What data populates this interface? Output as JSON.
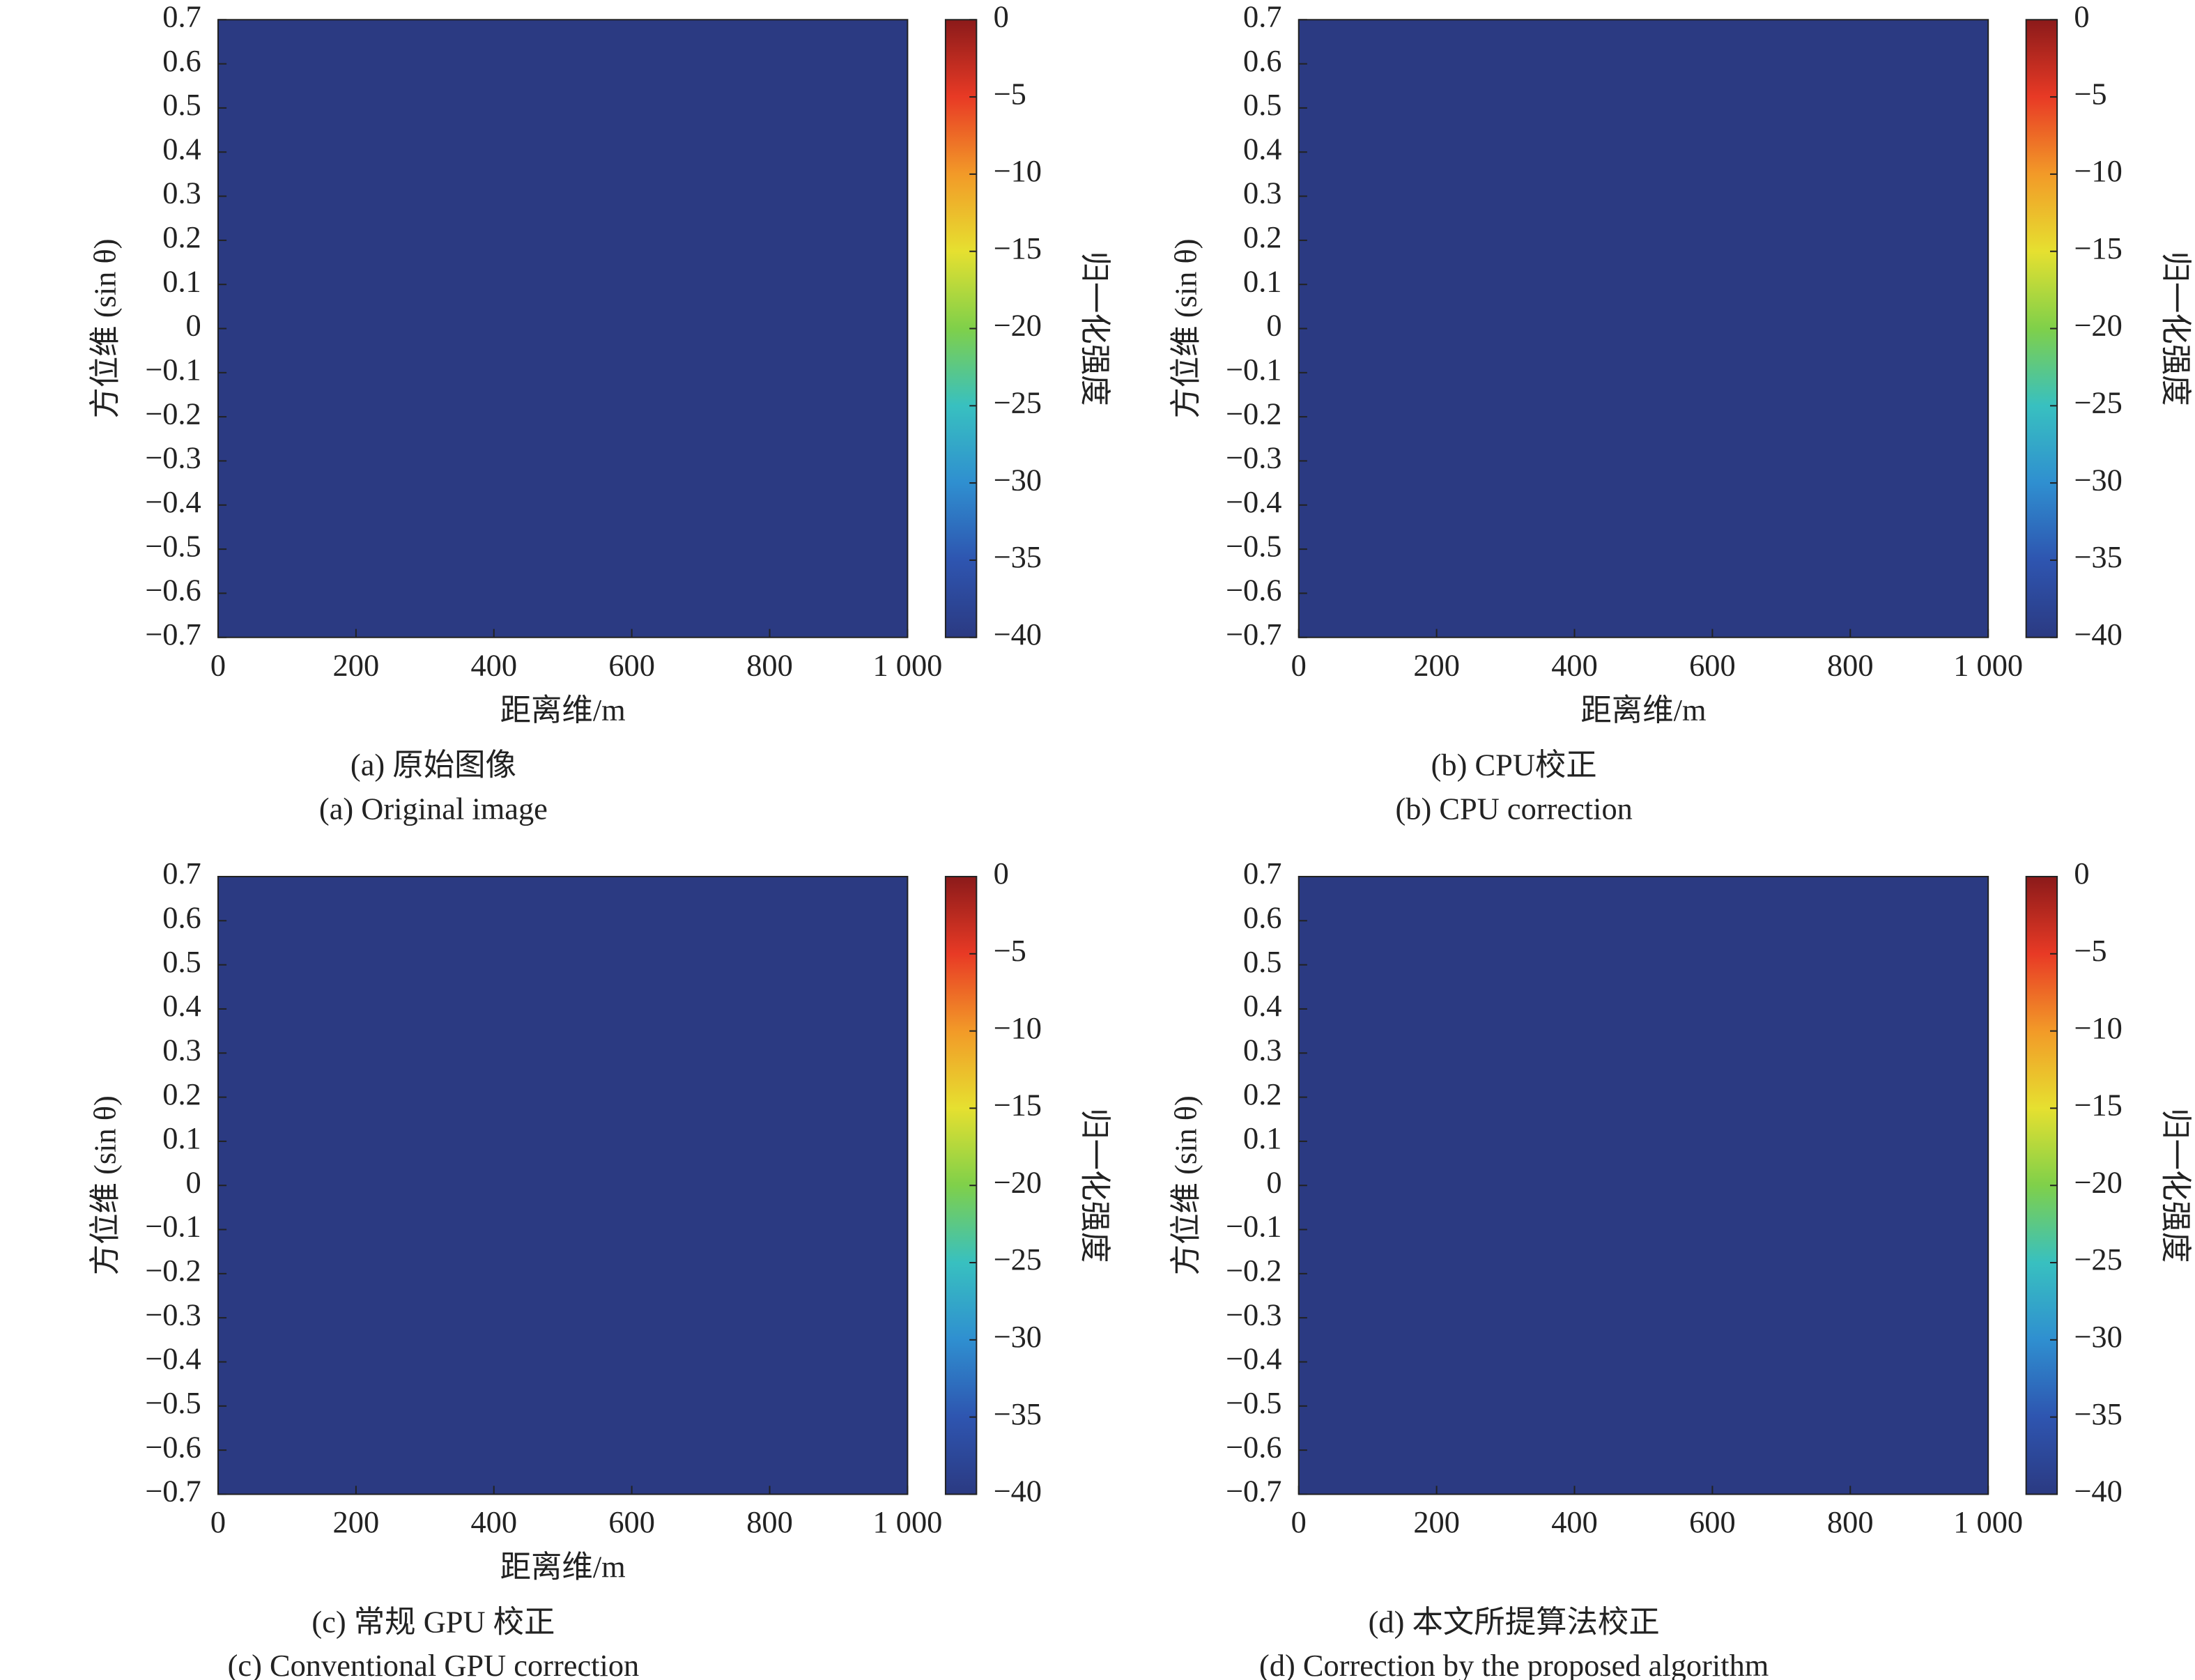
{
  "chart_data": [
    {
      "type": "heatmap",
      "caption": "(a) 原始图像",
      "caption_en": "(a) Original image",
      "xlabel": "距离维/m",
      "ylabel": "方位维 (sin θ)",
      "colorbar_label": "归一化强度",
      "xlim": [
        0,
        1000
      ],
      "xticks": [
        0,
        200,
        400,
        600,
        800,
        {
          "value": 1000,
          "label": "1 000"
        }
      ],
      "ylim": [
        -0.7,
        0.7
      ],
      "yticks": [
        {
          "value": -0.7,
          "label": "−0.7"
        },
        {
          "value": -0.6,
          "label": "−0.6"
        },
        {
          "value": -0.5,
          "label": "−0.5"
        },
        {
          "value": -0.4,
          "label": "−0.4"
        },
        {
          "value": -0.3,
          "label": "−0.3"
        },
        {
          "value": -0.2,
          "label": "−0.2"
        },
        {
          "value": -0.1,
          "label": "−0.1"
        },
        0,
        0.1,
        0.2,
        0.3,
        0.4,
        0.5,
        0.6,
        0.7
      ],
      "clim": [
        -40,
        0
      ],
      "cticks": [
        {
          "value": -40,
          "label": "−40"
        },
        {
          "value": -35,
          "label": "−35"
        },
        {
          "value": -30,
          "label": "−30"
        },
        {
          "value": -25,
          "label": "−25"
        },
        {
          "value": -20,
          "label": "−20"
        },
        {
          "value": -15,
          "label": "−15"
        },
        {
          "value": -10,
          "label": "−10"
        },
        {
          "value": -5,
          "label": "−5"
        },
        0
      ],
      "colormap": [
        "#2b3a82",
        "#2e55b0",
        "#2f8fd0",
        "#38c0c0",
        "#7fd04a",
        "#e6e030",
        "#f29a28",
        "#e83a25",
        "#8b1a1a"
      ]
    },
    {
      "type": "heatmap",
      "caption": "(b) CPU校正",
      "caption_en": "(b) CPU correction",
      "xlabel": "距离维/m",
      "ylabel": "方位维 (sin θ)",
      "colorbar_label": "归一化强度",
      "xlim": [
        0,
        1000
      ],
      "xticks": [
        0,
        200,
        400,
        600,
        800,
        {
          "value": 1000,
          "label": "1 000"
        }
      ],
      "ylim": [
        -0.7,
        0.7
      ],
      "yticks": [
        {
          "value": -0.7,
          "label": "−0.7"
        },
        {
          "value": -0.6,
          "label": "−0.6"
        },
        {
          "value": -0.5,
          "label": "−0.5"
        },
        {
          "value": -0.4,
          "label": "−0.4"
        },
        {
          "value": -0.3,
          "label": "−0.3"
        },
        {
          "value": -0.2,
          "label": "−0.2"
        },
        {
          "value": -0.1,
          "label": "−0.1"
        },
        0,
        0.1,
        0.2,
        0.3,
        0.4,
        0.5,
        0.6,
        0.7
      ],
      "clim": [
        -40,
        0
      ],
      "cticks": [
        {
          "value": -40,
          "label": "−40"
        },
        {
          "value": -35,
          "label": "−35"
        },
        {
          "value": -30,
          "label": "−30"
        },
        {
          "value": -25,
          "label": "−25"
        },
        {
          "value": -20,
          "label": "−20"
        },
        {
          "value": -15,
          "label": "−15"
        },
        {
          "value": -10,
          "label": "−10"
        },
        {
          "value": -5,
          "label": "−5"
        },
        0
      ],
      "colormap": [
        "#2b3a82",
        "#2e55b0",
        "#2f8fd0",
        "#38c0c0",
        "#7fd04a",
        "#e6e030",
        "#f29a28",
        "#e83a25",
        "#8b1a1a"
      ]
    },
    {
      "type": "heatmap",
      "caption": "(c) 常规 GPU 校正",
      "caption_en": "(c) Conventional GPU correction",
      "xlabel": "距离维/m",
      "ylabel": "方位维 (sin θ)",
      "colorbar_label": "归一化强度",
      "xlim": [
        0,
        1000
      ],
      "xticks": [
        0,
        200,
        400,
        600,
        800,
        {
          "value": 1000,
          "label": "1 000"
        }
      ],
      "ylim": [
        -0.7,
        0.7
      ],
      "yticks": [
        {
          "value": -0.7,
          "label": "−0.7"
        },
        {
          "value": -0.6,
          "label": "−0.6"
        },
        {
          "value": -0.5,
          "label": "−0.5"
        },
        {
          "value": -0.4,
          "label": "−0.4"
        },
        {
          "value": -0.3,
          "label": "−0.3"
        },
        {
          "value": -0.2,
          "label": "−0.2"
        },
        {
          "value": -0.1,
          "label": "−0.1"
        },
        0,
        0.1,
        0.2,
        0.3,
        0.4,
        0.5,
        0.6,
        0.7
      ],
      "clim": [
        -40,
        0
      ],
      "cticks": [
        {
          "value": -40,
          "label": "−40"
        },
        {
          "value": -35,
          "label": "−35"
        },
        {
          "value": -30,
          "label": "−30"
        },
        {
          "value": -25,
          "label": "−25"
        },
        {
          "value": -20,
          "label": "−20"
        },
        {
          "value": -15,
          "label": "−15"
        },
        {
          "value": -10,
          "label": "−10"
        },
        {
          "value": -5,
          "label": "−5"
        },
        0
      ],
      "colormap": [
        "#2b3a82",
        "#2e55b0",
        "#2f8fd0",
        "#38c0c0",
        "#7fd04a",
        "#e6e030",
        "#f29a28",
        "#e83a25",
        "#8b1a1a"
      ]
    },
    {
      "type": "heatmap",
      "caption": "(d) 本文所提算法校正",
      "caption_en": "(d) Correction by the proposed algorithm",
      "ylabel": "方位维 (sin θ)",
      "colorbar_label": "归一化强度",
      "xlim": [
        0,
        1000
      ],
      "xticks": [
        0,
        200,
        400,
        600,
        800,
        {
          "value": 1000,
          "label": "1 000"
        }
      ],
      "ylim": [
        -0.7,
        0.7
      ],
      "yticks": [
        {
          "value": -0.7,
          "label": "−0.7"
        },
        {
          "value": -0.6,
          "label": "−0.6"
        },
        {
          "value": -0.5,
          "label": "−0.5"
        },
        {
          "value": -0.4,
          "label": "−0.4"
        },
        {
          "value": -0.3,
          "label": "−0.3"
        },
        {
          "value": -0.2,
          "label": "−0.2"
        },
        {
          "value": -0.1,
          "label": "−0.1"
        },
        0,
        0.1,
        0.2,
        0.3,
        0.4,
        0.5,
        0.6,
        0.7
      ],
      "clim": [
        -40,
        0
      ],
      "cticks": [
        {
          "value": -40,
          "label": "−40"
        },
        {
          "value": -35,
          "label": "−35"
        },
        {
          "value": -30,
          "label": "−30"
        },
        {
          "value": -25,
          "label": "−25"
        },
        {
          "value": -20,
          "label": "−20"
        },
        {
          "value": -15,
          "label": "−15"
        },
        {
          "value": -10,
          "label": "−10"
        },
        {
          "value": -5,
          "label": "−5"
        },
        0
      ],
      "colormap": [
        "#2b3a82",
        "#2e55b0",
        "#2f8fd0",
        "#38c0c0",
        "#7fd04a",
        "#e6e030",
        "#f29a28",
        "#e83a25",
        "#8b1a1a"
      ]
    }
  ]
}
